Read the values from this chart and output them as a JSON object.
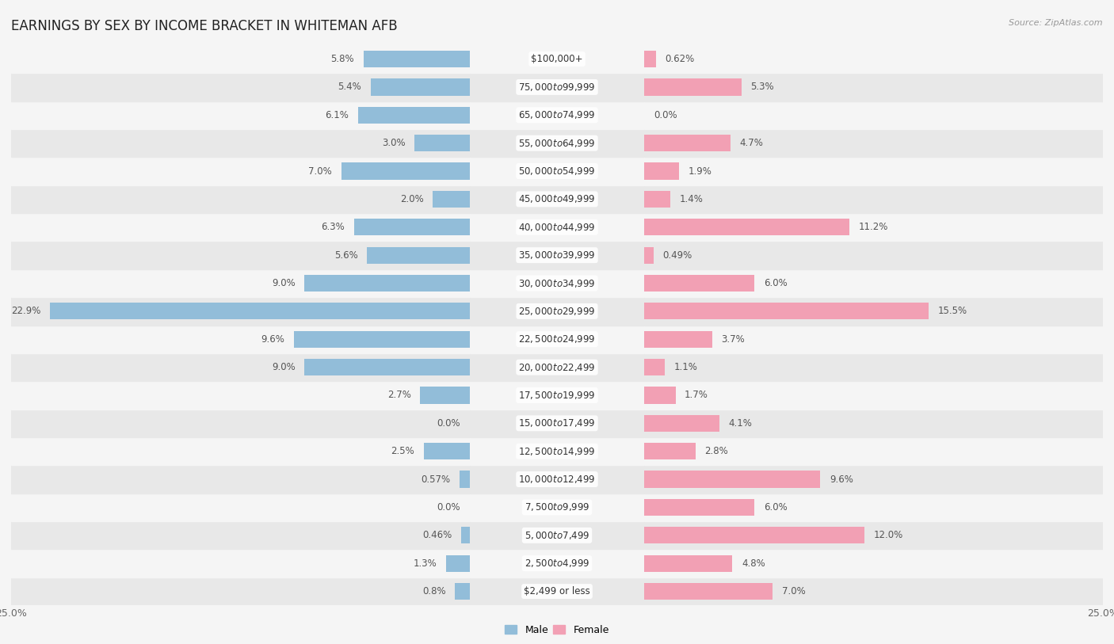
{
  "title": "EARNINGS BY SEX BY INCOME BRACKET IN WHITEMAN AFB",
  "source": "Source: ZipAtlas.com",
  "categories": [
    "$2,499 or less",
    "$2,500 to $4,999",
    "$5,000 to $7,499",
    "$7,500 to $9,999",
    "$10,000 to $12,499",
    "$12,500 to $14,999",
    "$15,000 to $17,499",
    "$17,500 to $19,999",
    "$20,000 to $22,499",
    "$22,500 to $24,999",
    "$25,000 to $29,999",
    "$30,000 to $34,999",
    "$35,000 to $39,999",
    "$40,000 to $44,999",
    "$45,000 to $49,999",
    "$50,000 to $54,999",
    "$55,000 to $64,999",
    "$65,000 to $74,999",
    "$75,000 to $99,999",
    "$100,000+"
  ],
  "male_values": [
    0.8,
    1.3,
    0.46,
    0.0,
    0.57,
    2.5,
    0.0,
    2.7,
    9.0,
    9.6,
    22.9,
    9.0,
    5.6,
    6.3,
    2.0,
    7.0,
    3.0,
    6.1,
    5.4,
    5.8
  ],
  "female_values": [
    7.0,
    4.8,
    12.0,
    6.0,
    9.6,
    2.8,
    4.1,
    1.7,
    1.1,
    3.7,
    15.5,
    6.0,
    0.49,
    11.2,
    1.4,
    1.9,
    4.7,
    0.0,
    5.3,
    0.62
  ],
  "male_color": "#92BDD9",
  "female_color": "#F2A0B4",
  "label_color": "#555555",
  "axis_max": 25.0,
  "background_color": "#f5f5f5",
  "row_even_color": "#e8e8e8",
  "row_odd_color": "#f5f5f5",
  "title_fontsize": 12,
  "label_fontsize": 8.5,
  "category_fontsize": 8.5,
  "axis_label_fontsize": 9,
  "bar_height": 0.6
}
